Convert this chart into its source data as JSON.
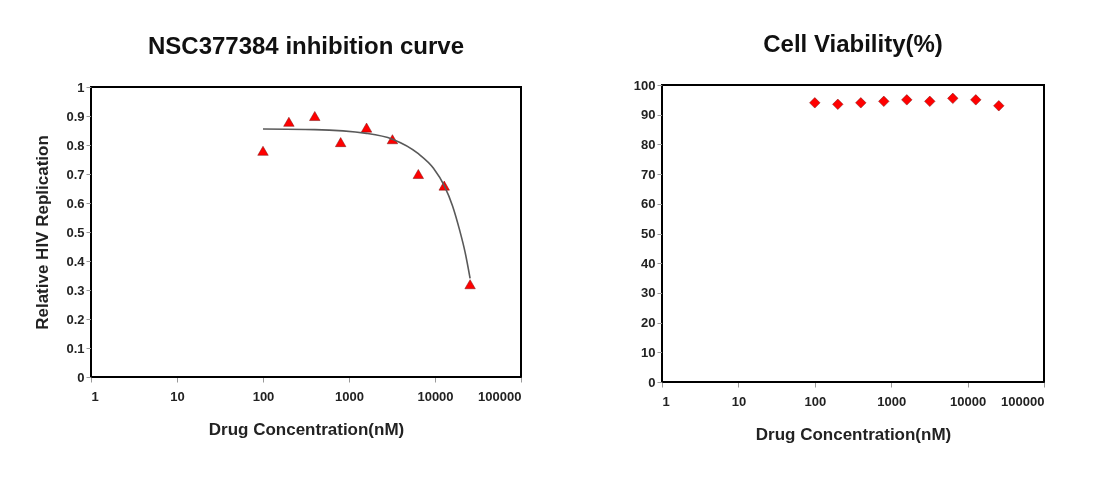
{
  "chart_data": [
    {
      "type": "scatter",
      "title": "NSC377384 inhibition curve",
      "xlabel": "Drug Concentration(nM)",
      "ylabel": "Relative HIV Replication",
      "log": "x",
      "xlim": [
        1,
        100000
      ],
      "xticks": [
        1,
        10,
        100,
        1000,
        10000,
        100000
      ],
      "ylim": [
        0,
        1
      ],
      "yticks": [
        0,
        0.1,
        0.2,
        0.3,
        0.4,
        0.5,
        0.6,
        0.7,
        0.8,
        0.9,
        1
      ],
      "marker": "triangle",
      "grid": false,
      "legend": false,
      "x": [
        100,
        200,
        400,
        800,
        1600,
        3200,
        6400,
        12800,
        25600
      ],
      "series": [
        {
          "type": "scatter",
          "color": "#ff0000",
          "values": [
            0.78,
            0.88,
            0.9,
            0.81,
            0.86,
            0.82,
            0.7,
            0.66,
            0.32
          ]
        },
        {
          "type": "line",
          "color": "#595959",
          "marker": "none",
          "x": [
            100,
            400,
            1600,
            3200,
            6400,
            9600,
            12800,
            16000,
            19200,
            22400,
            25600
          ],
          "values": [
            0.855,
            0.853,
            0.84,
            0.82,
            0.77,
            0.72,
            0.66,
            0.59,
            0.51,
            0.43,
            0.34
          ]
        }
      ]
    },
    {
      "type": "scatter",
      "title": "Cell Viability(%)",
      "xlabel": "Drug Concentration(nM)",
      "log": "x",
      "xlim": [
        1,
        100000
      ],
      "xticks": [
        1,
        10,
        100,
        1000,
        10000,
        100000
      ],
      "ylim": [
        0,
        100
      ],
      "yticks": [
        0,
        10,
        20,
        30,
        40,
        50,
        60,
        70,
        80,
        90,
        100
      ],
      "marker": "diamond",
      "grid": false,
      "legend": false,
      "x": [
        100,
        200,
        400,
        800,
        1600,
        3200,
        6400,
        12800,
        25600
      ],
      "series": [
        {
          "type": "scatter",
          "color": "#ff0000",
          "values": [
            94,
            93.5,
            94,
            94.5,
            95,
            94.5,
            95.5,
            95,
            93
          ]
        }
      ]
    }
  ]
}
